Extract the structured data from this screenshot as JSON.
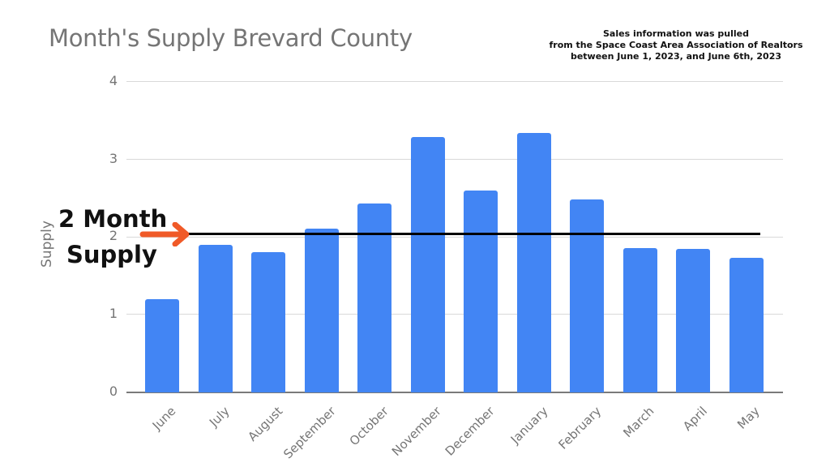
{
  "chart_data": {
    "type": "bar",
    "title": "Month's Supply Brevard County",
    "xlabel": "",
    "ylabel": "Supply",
    "ylim": [
      0,
      4
    ],
    "yticks": [
      "0",
      "1",
      "2",
      "3",
      "4"
    ],
    "grid": true,
    "legend": "none",
    "categories": [
      "June",
      "July",
      "August",
      "September",
      "October",
      "November",
      "December",
      "January",
      "February",
      "March",
      "April",
      "May"
    ],
    "values": [
      1.2,
      1.9,
      1.8,
      2.1,
      2.43,
      3.28,
      2.59,
      3.33,
      2.48,
      1.85,
      1.84,
      1.73
    ],
    "bar_color": "#4285f4",
    "annotations": [
      {
        "text": "2 Month Supply",
        "type": "reference_line",
        "y": 2.05,
        "color": "#000000",
        "arrow_color": "#f05a28"
      },
      {
        "text": "Sales information was pulled from the Space Coast Area Association of Realtors between June 1, 2023, and June 6th, 2023",
        "position": "top-right"
      }
    ]
  },
  "header": {
    "title": "Month's Supply Brevard County"
  },
  "source_note": {
    "line1": "Sales information was pulled",
    "line2": "from the Space Coast Area Association of Realtors",
    "line3": "between June 1, 2023, and June 6th, 2023"
  },
  "annotation": {
    "line1": "2 Month",
    "line2": "Supply"
  },
  "axis": {
    "ylabel": "Supply",
    "yticks": [
      "0",
      "1",
      "2",
      "3",
      "4"
    ]
  },
  "colors": {
    "bar": "#4285f4",
    "arrow": "#f05a28",
    "reference_line": "#000000"
  }
}
